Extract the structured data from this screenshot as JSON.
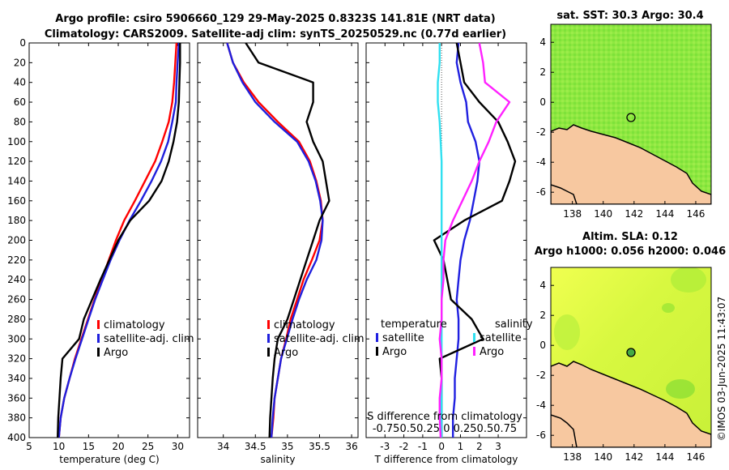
{
  "figure": {
    "title_line1": "Argo profile: csiro 5906660_129 29-May-2025 0.8323S 141.81E (NRT data)",
    "title_line2": "Climatology: CARS2009. Satellite-adj clim: synTS_20250529.nc (0.77d earlier)",
    "timestamp": "©IMOS 03-Jun-2025 11:43:07"
  },
  "colors": {
    "climatology": "#ff0000",
    "satellite": "#1f1fdd",
    "argo": "#000000",
    "temp_diff": "#2020e0",
    "sal_diff": "#ff20ff",
    "sal_sat": "#30e0f0",
    "land": "#f7c8a0"
  },
  "chart_data": [
    {
      "type": "line",
      "id": "temperature",
      "xlabel": "temperature (deg C)",
      "ylabel": "",
      "xlim": [
        5,
        32
      ],
      "ylim": [
        400,
        0
      ],
      "xticks": [
        5,
        10,
        15,
        20,
        25,
        30
      ],
      "yticks": [
        0,
        20,
        40,
        60,
        80,
        100,
        120,
        140,
        160,
        180,
        200,
        220,
        240,
        260,
        280,
        300,
        320,
        340,
        360,
        380,
        400
      ],
      "legend": [
        "climatology",
        "satellite-adj. clim",
        "Argo"
      ],
      "series": [
        {
          "name": "climatology",
          "x": [
            29.8,
            29.6,
            29.4,
            29.1,
            28.5,
            27.4,
            26.2,
            24.5,
            22.8,
            21.0,
            19.6,
            18.4,
            17.2,
            16.0,
            14.9,
            13.8,
            12.7,
            11.8,
            10.9,
            10.3,
            10.0
          ],
          "y": [
            0,
            20,
            40,
            60,
            80,
            100,
            120,
            140,
            160,
            180,
            200,
            220,
            240,
            260,
            280,
            300,
            320,
            340,
            360,
            380,
            400
          ]
        },
        {
          "name": "satellite-adj. clim",
          "x": [
            30.2,
            30.0,
            29.8,
            29.7,
            29.1,
            28.4,
            27.2,
            25.6,
            23.8,
            21.9,
            20.2,
            18.7,
            17.4,
            16.1,
            15.0,
            13.9,
            12.8,
            11.8,
            10.9,
            10.3,
            10.0
          ],
          "y": [
            0,
            20,
            40,
            60,
            80,
            100,
            120,
            140,
            160,
            180,
            200,
            220,
            240,
            260,
            280,
            300,
            320,
            340,
            360,
            380,
            400
          ]
        },
        {
          "name": "Argo",
          "x": [
            30.4,
            30.4,
            30.3,
            30.2,
            29.9,
            29.3,
            28.5,
            27.3,
            25.2,
            22.0,
            20.0,
            18.5,
            17.0,
            15.6,
            14.2,
            13.4,
            10.6,
            10.3,
            10.1,
            9.9,
            9.8
          ],
          "y": [
            0,
            20,
            40,
            60,
            80,
            100,
            120,
            140,
            160,
            180,
            200,
            220,
            240,
            260,
            280,
            300,
            320,
            340,
            360,
            380,
            400
          ]
        }
      ]
    },
    {
      "type": "line",
      "id": "salinity",
      "xlabel": "salinity",
      "xlim": [
        33.6,
        36.1
      ],
      "ylim": [
        400,
        0
      ],
      "xticks": [
        34,
        34.5,
        35,
        35.5,
        36
      ],
      "legend": [
        "climatology",
        "satellite-adj. clim",
        "Argo"
      ],
      "series": [
        {
          "name": "climatology",
          "x": [
            34.06,
            34.15,
            34.32,
            34.55,
            34.85,
            35.18,
            35.35,
            35.45,
            35.52,
            35.55,
            35.5,
            35.38,
            35.25,
            35.15,
            35.05,
            34.98,
            34.9,
            34.85,
            34.8,
            34.78,
            34.75
          ],
          "y": [
            0,
            20,
            40,
            60,
            80,
            100,
            120,
            140,
            160,
            180,
            200,
            220,
            240,
            260,
            280,
            300,
            320,
            340,
            360,
            380,
            400
          ]
        },
        {
          "name": "satellite-adj. clim",
          "x": [
            34.06,
            34.15,
            34.3,
            34.5,
            34.8,
            35.15,
            35.33,
            35.44,
            35.51,
            35.55,
            35.53,
            35.45,
            35.3,
            35.18,
            35.08,
            34.99,
            34.9,
            34.85,
            34.8,
            34.77,
            34.75
          ],
          "y": [
            0,
            20,
            40,
            60,
            80,
            100,
            120,
            140,
            160,
            180,
            200,
            220,
            240,
            260,
            280,
            300,
            320,
            340,
            360,
            380,
            400
          ]
        },
        {
          "name": "Argo",
          "x": [
            34.35,
            34.55,
            35.4,
            35.4,
            35.3,
            35.4,
            35.55,
            35.6,
            35.65,
            35.5,
            35.4,
            35.3,
            35.2,
            35.1,
            35.0,
            34.85,
            34.8,
            34.77,
            34.75,
            34.73,
            34.72
          ],
          "y": [
            0,
            20,
            40,
            60,
            80,
            100,
            120,
            140,
            160,
            180,
            200,
            220,
            240,
            260,
            280,
            300,
            320,
            340,
            360,
            380,
            400
          ]
        }
      ]
    },
    {
      "type": "line",
      "id": "differences",
      "xlabel": "T difference from climatology",
      "top_label_line1": "S difference from climatology",
      "top_label_line2": "-0.750.50.25  0  0.250.50.75",
      "xlim": [
        -4,
        4.5
      ],
      "ylim": [
        400,
        0
      ],
      "xticks": [
        -3,
        -2,
        -1,
        0,
        1,
        2,
        3
      ],
      "legend_temperature": "temperature",
      "legend_salinity": "salinity",
      "legend_items": [
        "satellite",
        "Argo",
        "satellite",
        "Argo"
      ],
      "series": [
        {
          "name": "T satellite",
          "x": [
            0.9,
            0.8,
            1.0,
            1.3,
            1.4,
            1.8,
            2.0,
            1.9,
            1.7,
            1.5,
            1.2,
            1.0,
            0.9,
            0.8,
            0.9,
            0.9,
            0.8,
            0.7,
            0.7,
            0.6,
            0.6
          ],
          "y": [
            0,
            20,
            40,
            60,
            80,
            100,
            120,
            140,
            160,
            180,
            200,
            220,
            240,
            260,
            280,
            300,
            320,
            340,
            360,
            380,
            400
          ]
        },
        {
          "name": "T Argo",
          "x": [
            0.8,
            1.0,
            1.2,
            2.0,
            3.0,
            3.5,
            3.9,
            3.6,
            3.2,
            1.2,
            -0.4,
            0.1,
            0.3,
            0.5,
            1.6,
            2.2,
            -0.1,
            0.0,
            0.0,
            0.0,
            0.0
          ],
          "y": [
            0,
            20,
            40,
            60,
            80,
            100,
            120,
            140,
            160,
            180,
            200,
            220,
            240,
            260,
            280,
            300,
            320,
            340,
            360,
            380,
            400
          ]
        },
        {
          "name": "S satellite",
          "x": [
            -0.1,
            -0.1,
            -0.2,
            -0.2,
            -0.1,
            -0.05,
            0.0,
            0.0,
            0.0,
            0.0,
            0.0,
            0.0,
            0.0,
            0.0,
            0.0,
            0.0,
            0.0,
            0.0,
            0.0,
            0.0,
            0.0
          ],
          "y": [
            0,
            20,
            40,
            60,
            80,
            100,
            120,
            140,
            160,
            180,
            200,
            220,
            240,
            260,
            280,
            300,
            320,
            340,
            360,
            380,
            400
          ]
        },
        {
          "name": "S Argo",
          "x": [
            2.0,
            2.2,
            2.3,
            3.6,
            2.9,
            2.5,
            2.0,
            1.6,
            1.1,
            0.6,
            0.2,
            0.1,
            0.1,
            0.0,
            0.0,
            -0.1,
            0.0,
            0.0,
            -0.1,
            -0.1,
            -0.05
          ],
          "y": [
            0,
            20,
            40,
            60,
            80,
            100,
            120,
            140,
            160,
            180,
            200,
            220,
            240,
            260,
            280,
            300,
            320,
            340,
            360,
            380,
            400
          ]
        }
      ]
    },
    {
      "type": "heatmap",
      "id": "sst_map",
      "title": "sat. SST: 30.3 Argo: 30.4",
      "xlim": [
        136.6,
        147.0
      ],
      "ylim": [
        -6.8,
        5.2
      ],
      "xticks": [
        138,
        140,
        142,
        144,
        146
      ],
      "yticks": [
        4,
        2,
        0,
        -2,
        -4,
        -6
      ],
      "marker": {
        "lon": 141.81,
        "lat": -0.83
      }
    },
    {
      "type": "heatmap",
      "id": "sla_map",
      "title_line1": "Altim. SLA: 0.12",
      "title_line2": "Argo h1000: 0.056 h2000: 0.046",
      "xlim": [
        136.6,
        147.0
      ],
      "ylim": [
        -6.8,
        5.2
      ],
      "xticks": [
        138,
        140,
        142,
        144,
        146
      ],
      "yticks": [
        4,
        2,
        0,
        -2,
        -4,
        -6
      ],
      "marker": {
        "lon": 141.81,
        "lat": -0.83
      }
    }
  ]
}
